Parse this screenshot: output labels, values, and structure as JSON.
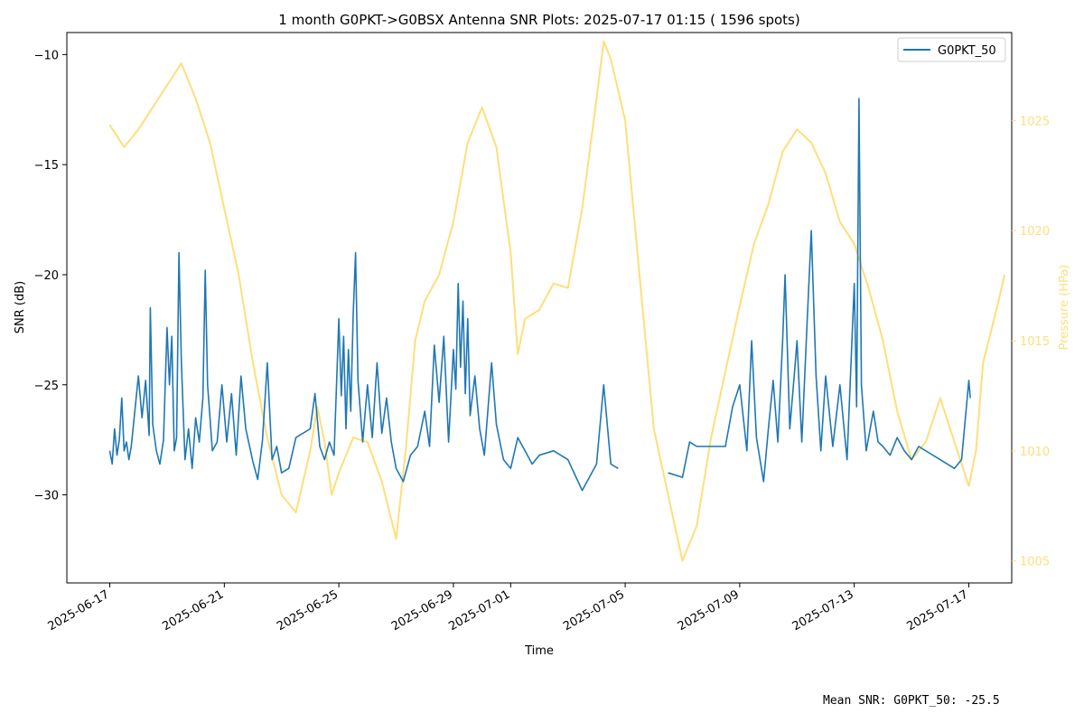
{
  "chart_data": {
    "type": "line",
    "title": "1 month G0PKT->G0BSX Antenna SNR Plots: 2025-07-17 01:15  ( 1596 spots)",
    "xlabel": "Time",
    "ylabel": "SNR (dB)",
    "y2label": "Pressure (HPa)",
    "x_ticks": [
      "2025-06-17",
      "2025-06-21",
      "2025-06-25",
      "2025-06-29",
      "2025-07-01",
      "2025-07-05",
      "2025-07-09",
      "2025-07-13",
      "2025-07-17"
    ],
    "xlim": [
      "2025-06-15T12:00",
      "2025-07-18T12:00"
    ],
    "y_ticks": [
      -10,
      -15,
      -20,
      -25,
      -30
    ],
    "ylim": [
      -34,
      -9
    ],
    "y2_ticks": [
      1005,
      1010,
      1015,
      1020,
      1025
    ],
    "y2lim": [
      1004,
      1029
    ],
    "grid": false,
    "legend": {
      "position": "top-right",
      "entries": [
        "G0PKT_50"
      ]
    },
    "colors": {
      "snr": "#1f77b4",
      "pressure": "#ffde7a",
      "pressure_axis": "#ffde7a"
    },
    "series": [
      {
        "name": "G0PKT_50",
        "axis": "left",
        "points": [
          [
            "2025-06-17T00:00",
            -28.0
          ],
          [
            "2025-06-17T02:00",
            -28.6
          ],
          [
            "2025-06-17T04:00",
            -27.0
          ],
          [
            "2025-06-17T06:00",
            -28.2
          ],
          [
            "2025-06-17T08:00",
            -27.5
          ],
          [
            "2025-06-17T10:00",
            -25.6
          ],
          [
            "2025-06-17T12:00",
            -28.0
          ],
          [
            "2025-06-17T14:00",
            -27.6
          ],
          [
            "2025-06-17T16:00",
            -28.4
          ],
          [
            "2025-06-17T18:00",
            -27.8
          ],
          [
            "2025-06-18T00:00",
            -24.6
          ],
          [
            "2025-06-18T03:00",
            -26.5
          ],
          [
            "2025-06-18T06:00",
            -24.8
          ],
          [
            "2025-06-18T09:00",
            -27.3
          ],
          [
            "2025-06-18T10:00",
            -21.5
          ],
          [
            "2025-06-18T12:00",
            -26.8
          ],
          [
            "2025-06-18T15:00",
            -28.0
          ],
          [
            "2025-06-18T18:00",
            -28.6
          ],
          [
            "2025-06-18T21:00",
            -27.5
          ],
          [
            "2025-06-19T00:00",
            -22.4
          ],
          [
            "2025-06-19T02:00",
            -25.0
          ],
          [
            "2025-06-19T04:00",
            -22.8
          ],
          [
            "2025-06-19T06:00",
            -28.0
          ],
          [
            "2025-06-19T08:00",
            -27.4
          ],
          [
            "2025-06-19T10:00",
            -19.0
          ],
          [
            "2025-06-19T12:00",
            -24.0
          ],
          [
            "2025-06-19T15:00",
            -28.4
          ],
          [
            "2025-06-19T18:00",
            -27.0
          ],
          [
            "2025-06-19T21:00",
            -28.8
          ],
          [
            "2025-06-20T00:00",
            -26.5
          ],
          [
            "2025-06-20T03:00",
            -27.6
          ],
          [
            "2025-06-20T06:00",
            -25.6
          ],
          [
            "2025-06-20T08:00",
            -19.8
          ],
          [
            "2025-06-20T10:00",
            -25.0
          ],
          [
            "2025-06-20T14:00",
            -28.0
          ],
          [
            "2025-06-20T18:00",
            -27.6
          ],
          [
            "2025-06-20T22:00",
            -25.0
          ],
          [
            "2025-06-21T02:00",
            -27.6
          ],
          [
            "2025-06-21T06:00",
            -25.4
          ],
          [
            "2025-06-21T10:00",
            -28.2
          ],
          [
            "2025-06-21T14:00",
            -24.6
          ],
          [
            "2025-06-21T18:00",
            -27.0
          ],
          [
            "2025-06-22T00:00",
            -28.5
          ],
          [
            "2025-06-22T04:00",
            -29.3
          ],
          [
            "2025-06-22T08:00",
            -27.5
          ],
          [
            "2025-06-22T12:00",
            -24.0
          ],
          [
            "2025-06-22T16:00",
            -28.4
          ],
          [
            "2025-06-22T20:00",
            -27.8
          ],
          [
            "2025-06-23T00:00",
            -29.0
          ],
          [
            "2025-06-23T06:00",
            -28.8
          ],
          [
            "2025-06-23T12:00",
            -27.4
          ],
          [
            "2025-06-24T00:00",
            -27.0
          ],
          [
            "2025-06-24T04:00",
            -25.4
          ],
          [
            "2025-06-24T08:00",
            -27.8
          ],
          [
            "2025-06-24T12:00",
            -28.4
          ],
          [
            "2025-06-24T16:00",
            -27.6
          ],
          [
            "2025-06-24T20:00",
            -28.2
          ],
          [
            "2025-06-25T00:00",
            -22.0
          ],
          [
            "2025-06-25T02:00",
            -25.5
          ],
          [
            "2025-06-25T04:00",
            -22.8
          ],
          [
            "2025-06-25T06:00",
            -27.0
          ],
          [
            "2025-06-25T08:00",
            -23.4
          ],
          [
            "2025-06-25T10:00",
            -26.2
          ],
          [
            "2025-06-25T12:00",
            -21.8
          ],
          [
            "2025-06-25T14:00",
            -19.0
          ],
          [
            "2025-06-25T16:00",
            -24.8
          ],
          [
            "2025-06-25T20:00",
            -27.6
          ],
          [
            "2025-06-26T00:00",
            -25.0
          ],
          [
            "2025-06-26T04:00",
            -27.4
          ],
          [
            "2025-06-26T08:00",
            -24.0
          ],
          [
            "2025-06-26T12:00",
            -27.2
          ],
          [
            "2025-06-26T16:00",
            -25.6
          ],
          [
            "2025-06-26T20:00",
            -27.6
          ],
          [
            "2025-06-27T00:00",
            -28.8
          ],
          [
            "2025-06-27T06:00",
            -29.4
          ],
          [
            "2025-06-27T12:00",
            -28.2
          ],
          [
            "2025-06-27T18:00",
            -27.8
          ],
          [
            "2025-06-28T00:00",
            -26.2
          ],
          [
            "2025-06-28T04:00",
            -27.8
          ],
          [
            "2025-06-28T08:00",
            -23.2
          ],
          [
            "2025-06-28T12:00",
            -25.8
          ],
          [
            "2025-06-28T16:00",
            -22.8
          ],
          [
            "2025-06-28T20:00",
            -27.6
          ],
          [
            "2025-06-29T00:00",
            -23.4
          ],
          [
            "2025-06-29T02:00",
            -25.2
          ],
          [
            "2025-06-29T04:00",
            -20.4
          ],
          [
            "2025-06-29T06:00",
            -24.2
          ],
          [
            "2025-06-29T08:00",
            -21.2
          ],
          [
            "2025-06-29T10:00",
            -25.4
          ],
          [
            "2025-06-29T12:00",
            -22.0
          ],
          [
            "2025-06-29T14:00",
            -26.4
          ],
          [
            "2025-06-29T18:00",
            -24.6
          ],
          [
            "2025-06-29T22:00",
            -27.0
          ],
          [
            "2025-06-30T02:00",
            -28.2
          ],
          [
            "2025-06-30T08:00",
            -24.0
          ],
          [
            "2025-06-30T12:00",
            -26.8
          ],
          [
            "2025-06-30T18:00",
            -28.4
          ],
          [
            "2025-07-01T00:00",
            -28.8
          ],
          [
            "2025-07-01T06:00",
            -27.4
          ],
          [
            "2025-07-01T12:00",
            -28.0
          ],
          [
            "2025-07-01T18:00",
            -28.6
          ],
          [
            "2025-07-02T00:00",
            -28.2
          ],
          [
            "2025-07-02T12:00",
            -28.0
          ],
          [
            "2025-07-03T00:00",
            -28.4
          ],
          [
            "2025-07-03T12:00",
            -29.8
          ],
          [
            "2025-07-04T00:00",
            -28.6
          ],
          [
            "2025-07-04T06:00",
            -25.0
          ],
          [
            "2025-07-04T12:00",
            -28.6
          ],
          [
            "2025-07-04T18:00",
            -28.8
          ]
        ]
      },
      {
        "name": "",
        "axis": "left",
        "points": [
          [
            "2025-07-06T12:00",
            -29.0
          ],
          [
            "2025-07-07T00:00",
            -29.2
          ],
          [
            "2025-07-07T06:00",
            -27.6
          ],
          [
            "2025-07-07T12:00",
            -27.8
          ],
          [
            "2025-07-08T12:00",
            -27.8
          ],
          [
            "2025-07-08T18:00",
            -26.0
          ],
          [
            "2025-07-09T00:00",
            -25.0
          ],
          [
            "2025-07-09T06:00",
            -28.0
          ],
          [
            "2025-07-09T10:00",
            -23.0
          ],
          [
            "2025-07-09T14:00",
            -27.4
          ],
          [
            "2025-07-09T20:00",
            -29.4
          ],
          [
            "2025-07-10T00:00",
            -27.0
          ],
          [
            "2025-07-10T04:00",
            -24.8
          ],
          [
            "2025-07-10T08:00",
            -27.6
          ],
          [
            "2025-07-10T12:00",
            -23.0
          ],
          [
            "2025-07-10T14:00",
            -20.0
          ],
          [
            "2025-07-10T18:00",
            -27.0
          ],
          [
            "2025-07-10T22:00",
            -24.4
          ],
          [
            "2025-07-11T00:00",
            -23.0
          ],
          [
            "2025-07-11T04:00",
            -27.6
          ],
          [
            "2025-07-11T08:00",
            -22.8
          ],
          [
            "2025-07-11T12:00",
            -18.0
          ],
          [
            "2025-07-11T16:00",
            -24.6
          ],
          [
            "2025-07-11T20:00",
            -28.0
          ],
          [
            "2025-07-12T00:00",
            -24.6
          ],
          [
            "2025-07-12T06:00",
            -27.8
          ],
          [
            "2025-07-12T12:00",
            -25.0
          ],
          [
            "2025-07-12T18:00",
            -28.4
          ],
          [
            "2025-07-13T00:00",
            -20.4
          ],
          [
            "2025-07-13T02:00",
            -26.0
          ],
          [
            "2025-07-13T04:00",
            -12.0
          ],
          [
            "2025-07-13T06:00",
            -25.0
          ],
          [
            "2025-07-13T10:00",
            -28.0
          ],
          [
            "2025-07-13T16:00",
            -26.2
          ],
          [
            "2025-07-13T20:00",
            -27.6
          ],
          [
            "2025-07-14T00:00",
            -27.8
          ],
          [
            "2025-07-14T06:00",
            -28.2
          ],
          [
            "2025-07-14T12:00",
            -27.4
          ],
          [
            "2025-07-14T18:00",
            -28.0
          ],
          [
            "2025-07-15T00:00",
            -28.4
          ],
          [
            "2025-07-15T06:00",
            -27.8
          ],
          [
            "2025-07-16T12:00",
            -28.8
          ],
          [
            "2025-07-16T18:00",
            -28.4
          ],
          [
            "2025-07-17T00:00",
            -24.8
          ],
          [
            "2025-07-17T01:15",
            -25.6
          ]
        ]
      },
      {
        "name": "",
        "axis": "right",
        "points": [
          [
            "2025-06-17T00:00",
            1024.8
          ],
          [
            "2025-06-17T12:00",
            1023.8
          ],
          [
            "2025-06-18T00:00",
            1024.6
          ],
          [
            "2025-06-18T12:00",
            1025.6
          ],
          [
            "2025-06-19T00:00",
            1026.6
          ],
          [
            "2025-06-19T12:00",
            1027.6
          ],
          [
            "2025-06-20T00:00",
            1026.0
          ],
          [
            "2025-06-20T12:00",
            1024.0
          ],
          [
            "2025-06-21T00:00",
            1021.0
          ],
          [
            "2025-06-21T12:00",
            1018.0
          ],
          [
            "2025-06-22T00:00",
            1014.0
          ],
          [
            "2025-06-22T12:00",
            1010.6
          ],
          [
            "2025-06-23T00:00",
            1008.0
          ],
          [
            "2025-06-23T12:00",
            1007.2
          ],
          [
            "2025-06-24T00:00",
            1010.0
          ],
          [
            "2025-06-24T06:00",
            1012.0
          ],
          [
            "2025-06-24T12:00",
            1010.4
          ],
          [
            "2025-06-24T18:00",
            1008.0
          ],
          [
            "2025-06-25T00:00",
            1009.0
          ],
          [
            "2025-06-25T12:00",
            1010.6
          ],
          [
            "2025-06-26T00:00",
            1010.4
          ],
          [
            "2025-06-26T12:00",
            1008.6
          ],
          [
            "2025-06-27T00:00",
            1006.0
          ],
          [
            "2025-06-27T08:00",
            1010.0
          ],
          [
            "2025-06-27T16:00",
            1015.0
          ],
          [
            "2025-06-28T00:00",
            1016.8
          ],
          [
            "2025-06-28T12:00",
            1018.0
          ],
          [
            "2025-06-29T00:00",
            1020.4
          ],
          [
            "2025-06-29T12:00",
            1024.0
          ],
          [
            "2025-06-30T00:00",
            1025.6
          ],
          [
            "2025-06-30T12:00",
            1023.8
          ],
          [
            "2025-07-01T00:00",
            1019.0
          ],
          [
            "2025-07-01T06:00",
            1014.4
          ],
          [
            "2025-07-01T12:00",
            1016.0
          ],
          [
            "2025-07-02T00:00",
            1016.4
          ],
          [
            "2025-07-02T12:00",
            1017.6
          ],
          [
            "2025-07-03T00:00",
            1017.4
          ],
          [
            "2025-07-03T12:00",
            1021.0
          ],
          [
            "2025-07-04T00:00",
            1026.0
          ],
          [
            "2025-07-04T06:00",
            1028.6
          ],
          [
            "2025-07-04T12:00",
            1027.8
          ],
          [
            "2025-07-05T00:00",
            1025.0
          ],
          [
            "2025-07-05T12:00",
            1018.0
          ],
          [
            "2025-07-06T00:00",
            1011.0
          ],
          [
            "2025-07-06T12:00",
            1008.0
          ],
          [
            "2025-07-07T00:00",
            1005.0
          ],
          [
            "2025-07-07T12:00",
            1006.6
          ],
          [
            "2025-07-08T00:00",
            1010.6
          ],
          [
            "2025-07-08T12:00",
            1013.6
          ],
          [
            "2025-07-09T00:00",
            1016.6
          ],
          [
            "2025-07-09T12:00",
            1019.4
          ],
          [
            "2025-07-10T00:00",
            1021.2
          ],
          [
            "2025-07-10T12:00",
            1023.6
          ],
          [
            "2025-07-11T00:00",
            1024.6
          ],
          [
            "2025-07-11T12:00",
            1024.0
          ],
          [
            "2025-07-12T00:00",
            1022.6
          ],
          [
            "2025-07-12T12:00",
            1020.4
          ],
          [
            "2025-07-13T00:00",
            1019.4
          ],
          [
            "2025-07-13T12:00",
            1017.4
          ],
          [
            "2025-07-14T00:00",
            1015.0
          ],
          [
            "2025-07-14T12:00",
            1011.8
          ],
          [
            "2025-07-15T00:00",
            1009.6
          ],
          [
            "2025-07-15T12:00",
            1010.4
          ],
          [
            "2025-07-16T00:00",
            1012.4
          ],
          [
            "2025-07-16T12:00",
            1010.4
          ],
          [
            "2025-07-17T00:00",
            1008.4
          ],
          [
            "2025-07-17T06:00",
            1010.0
          ],
          [
            "2025-07-17T12:00",
            1014.0
          ],
          [
            "2025-07-18T00:00",
            1016.6
          ],
          [
            "2025-07-18T06:00",
            1018.0
          ]
        ]
      }
    ]
  },
  "footer": {
    "mean_snr_text": "Mean SNR: G0PKT_50: -25.5"
  }
}
